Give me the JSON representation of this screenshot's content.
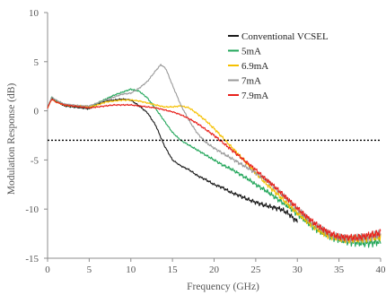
{
  "chart_data": {
    "type": "line",
    "xlabel": "Frequency (GHz)",
    "ylabel": "Modulation Response (dB)",
    "xlim": [
      0,
      40
    ],
    "ylim": [
      -15,
      10
    ],
    "xticks": [
      0,
      5,
      10,
      15,
      20,
      25,
      30,
      35,
      40
    ],
    "yticks": [
      -15,
      -10,
      -5,
      0,
      5,
      10
    ],
    "grid": false,
    "legend_position": "top-right",
    "reference_line": {
      "y": -3,
      "style": "dotted",
      "color": "#000000"
    },
    "series": [
      {
        "name": "Conventional VCSEL",
        "color": "#1a1a1a",
        "x": [
          0,
          0.5,
          1,
          2,
          3,
          4,
          5,
          6,
          7,
          8,
          9,
          10,
          11,
          12,
          13,
          14,
          15,
          16,
          17,
          18,
          19,
          20,
          21,
          22,
          23,
          24,
          25,
          26,
          27,
          28,
          29,
          30
        ],
        "y": [
          0.3,
          1.3,
          1.0,
          0.5,
          0.4,
          0.3,
          0.2,
          0.7,
          1.0,
          1.1,
          1.2,
          1.1,
          0.5,
          -0.2,
          -1.5,
          -3.5,
          -5.0,
          -5.6,
          -6.0,
          -6.6,
          -7.0,
          -7.5,
          -7.8,
          -8.3,
          -8.6,
          -9.0,
          -9.3,
          -9.6,
          -9.8,
          -10.0,
          -10.5,
          -11.3
        ]
      },
      {
        "name": "5mA",
        "color": "#22a65a",
        "x": [
          0,
          0.5,
          1,
          2,
          3,
          4,
          5,
          6,
          7,
          8,
          9,
          10,
          11,
          12,
          13,
          14,
          15,
          16,
          17,
          18,
          19,
          20,
          21,
          22,
          23,
          24,
          25,
          26,
          27,
          28,
          29,
          30,
          31,
          32,
          33,
          34,
          35,
          36,
          37,
          38,
          39,
          40
        ],
        "y": [
          0.3,
          1.4,
          1.0,
          0.6,
          0.5,
          0.4,
          0.3,
          0.8,
          1.2,
          1.6,
          1.9,
          2.2,
          2.0,
          1.3,
          0.2,
          -1.0,
          -2.2,
          -3.0,
          -3.5,
          -4.0,
          -4.5,
          -5.0,
          -5.5,
          -5.9,
          -6.4,
          -6.9,
          -7.5,
          -8.0,
          -8.6,
          -9.2,
          -9.8,
          -10.5,
          -11.2,
          -11.9,
          -12.4,
          -12.8,
          -13.1,
          -13.3,
          -13.4,
          -13.5,
          -13.4,
          -13.3
        ]
      },
      {
        "name": "6.9mA",
        "color": "#f5c000",
        "x": [
          0,
          0.5,
          1,
          2,
          3,
          4,
          5,
          6,
          7,
          8,
          9,
          10,
          11,
          12,
          13,
          14,
          15,
          16,
          17,
          18,
          19,
          20,
          21,
          22,
          23,
          24,
          25,
          26,
          27,
          28,
          29,
          30,
          31,
          32,
          33,
          34,
          35,
          36,
          37,
          38,
          39,
          40
        ],
        "y": [
          0.3,
          1.2,
          0.9,
          0.6,
          0.5,
          0.5,
          0.4,
          0.6,
          0.9,
          1.0,
          1.1,
          1.1,
          1.0,
          0.8,
          0.6,
          0.4,
          0.4,
          0.5,
          0.3,
          -0.3,
          -1.0,
          -1.8,
          -2.7,
          -3.6,
          -4.5,
          -5.4,
          -6.3,
          -7.2,
          -8.0,
          -8.8,
          -9.6,
          -10.4,
          -11.1,
          -11.8,
          -12.4,
          -12.8,
          -13.0,
          -13.1,
          -13.1,
          -13.0,
          -12.9,
          -12.8
        ]
      },
      {
        "name": "7mA",
        "color": "#9a9a9a",
        "x": [
          0,
          0.5,
          1,
          2,
          3,
          4,
          5,
          6,
          7,
          8,
          9,
          10,
          11,
          12,
          13,
          13.6,
          14.2,
          15,
          16,
          17,
          18,
          19,
          20,
          21,
          22,
          23,
          24,
          25,
          26,
          27,
          28,
          29,
          30,
          31,
          32,
          33,
          34,
          35,
          36,
          37,
          38,
          39,
          40
        ],
        "y": [
          0.3,
          1.4,
          1.1,
          0.7,
          0.6,
          0.5,
          0.5,
          0.8,
          1.1,
          1.4,
          1.7,
          1.8,
          2.3,
          3.0,
          4.1,
          4.7,
          4.3,
          2.6,
          0.6,
          -1.0,
          -2.3,
          -3.2,
          -3.8,
          -4.3,
          -4.8,
          -5.3,
          -5.8,
          -6.3,
          -6.9,
          -7.6,
          -8.4,
          -9.2,
          -10.0,
          -10.8,
          -11.5,
          -12.1,
          -12.6,
          -12.9,
          -13.0,
          -13.0,
          -12.9,
          -12.8,
          -12.6
        ]
      },
      {
        "name": "7.9mA",
        "color": "#e8211c",
        "x": [
          0,
          0.5,
          1,
          2,
          3,
          4,
          5,
          6,
          7,
          8,
          9,
          10,
          11,
          12,
          13,
          14,
          15,
          16,
          17,
          18,
          19,
          20,
          21,
          22,
          23,
          24,
          25,
          26,
          27,
          28,
          29,
          30,
          31,
          32,
          33,
          34,
          35,
          36,
          37,
          38,
          39,
          40
        ],
        "y": [
          0.3,
          1.2,
          0.9,
          0.6,
          0.5,
          0.4,
          0.3,
          0.4,
          0.5,
          0.6,
          0.6,
          0.6,
          0.5,
          0.4,
          0.3,
          0.1,
          -0.1,
          -0.4,
          -0.8,
          -1.3,
          -1.9,
          -2.5,
          -3.2,
          -3.9,
          -4.6,
          -5.3,
          -6.0,
          -6.8,
          -7.5,
          -8.3,
          -9.1,
          -9.9,
          -10.7,
          -11.4,
          -12.0,
          -12.5,
          -12.8,
          -12.9,
          -12.9,
          -12.8,
          -12.6,
          -12.4
        ]
      }
    ]
  }
}
